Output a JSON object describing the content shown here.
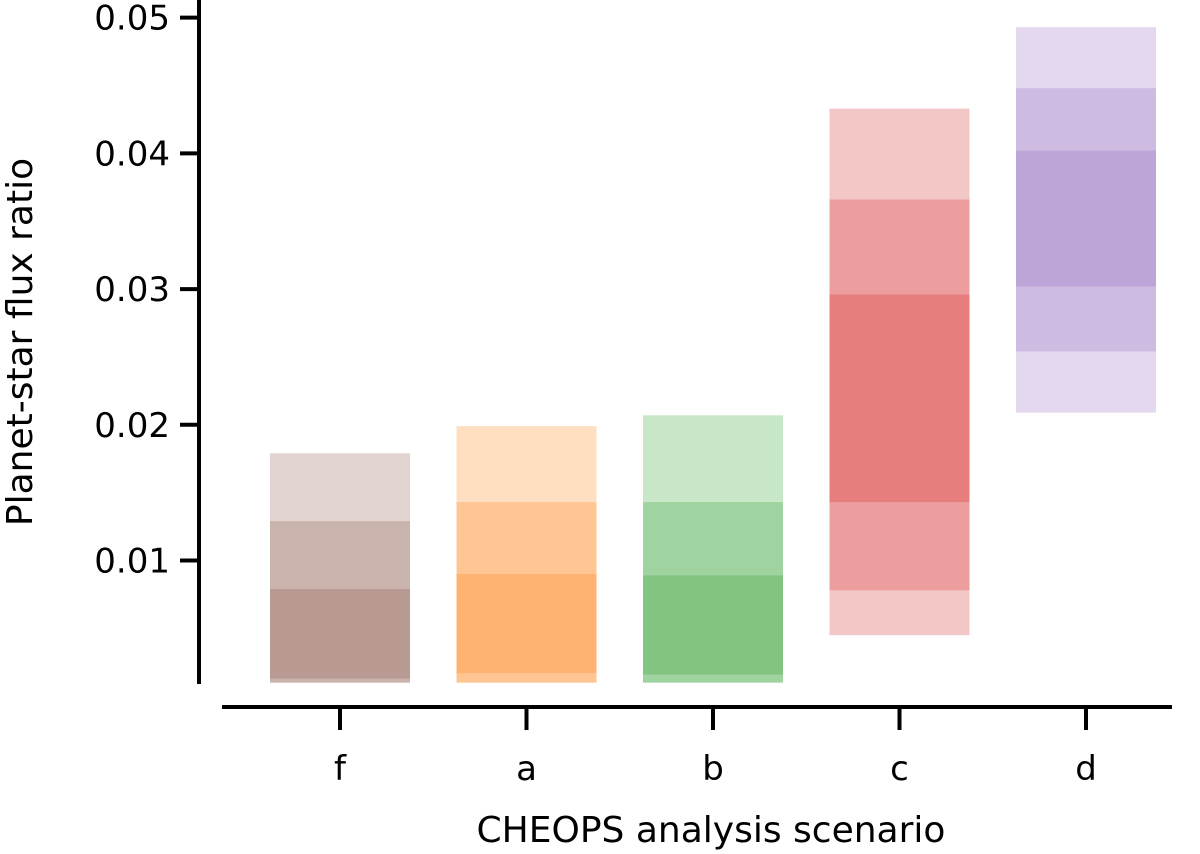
{
  "chart_data": {
    "type": "bar",
    "title": "",
    "xlabel": "CHEOPS analysis scenario",
    "ylabel": "Planet-star flux ratio",
    "ylim": [
      0.0009,
      0.0513
    ],
    "yticks": [
      0.01,
      0.02,
      0.03,
      0.04,
      0.05
    ],
    "ytick_labels": [
      "0.01",
      "0.02",
      "0.03",
      "0.04",
      "0.05"
    ],
    "categories": [
      "f",
      "a",
      "b",
      "c",
      "d"
    ],
    "grid": false,
    "legend": "none",
    "series": [
      {
        "category": "f",
        "color": "#8c564b",
        "band_1sigma": [
          0.0013,
          0.0079
        ],
        "band_2sigma": [
          0.001,
          0.0129
        ],
        "band_3sigma": [
          0.001,
          0.0179
        ]
      },
      {
        "category": "a",
        "color": "#ff7f0e",
        "band_1sigma": [
          0.0017,
          0.009
        ],
        "band_2sigma": [
          0.001,
          0.0143
        ],
        "band_3sigma": [
          0.001,
          0.0199
        ]
      },
      {
        "category": "b",
        "color": "#2ca02c",
        "band_1sigma": [
          0.0016,
          0.0089
        ],
        "band_2sigma": [
          0.001,
          0.0143
        ],
        "band_3sigma": [
          0.001,
          0.0207
        ]
      },
      {
        "category": "c",
        "color": "#d62728",
        "band_1sigma": [
          0.0143,
          0.0296
        ],
        "band_2sigma": [
          0.0078,
          0.0366
        ],
        "band_3sigma": [
          0.0045,
          0.0433
        ]
      },
      {
        "category": "d",
        "color": "#9467bd",
        "band_1sigma": [
          0.0302,
          0.0402
        ],
        "band_2sigma": [
          0.0254,
          0.0448
        ],
        "band_3sigma": [
          0.0209,
          0.0493
        ]
      }
    ]
  }
}
